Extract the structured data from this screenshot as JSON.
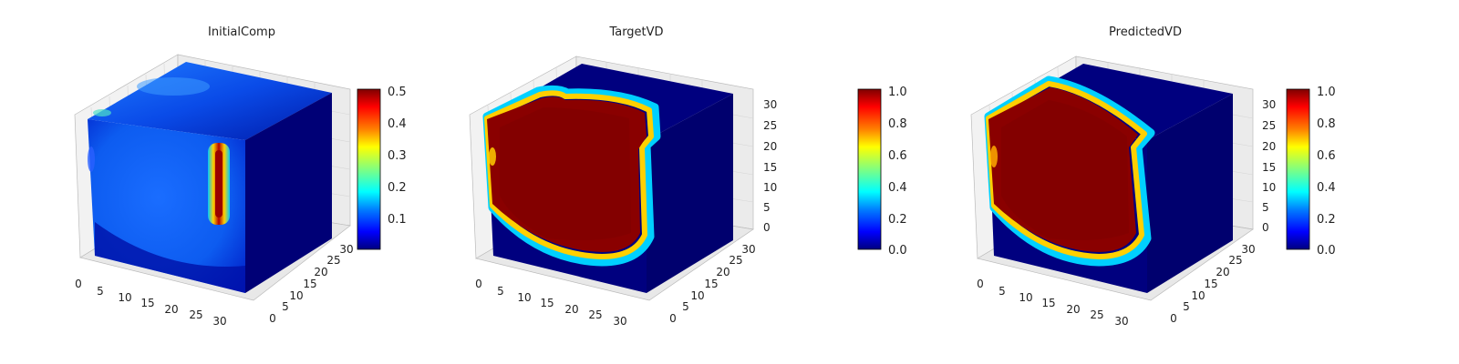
{
  "figure": {
    "panels": [
      {
        "title": "InitialComp"
      },
      {
        "title": "TargetVD"
      },
      {
        "title": "PredictedVD"
      }
    ]
  },
  "chart_data": [
    {
      "type": "heatmap",
      "title": "InitialComp",
      "colormap": "jet",
      "colorbar": {
        "vmin": 0.0,
        "vmax": 0.5,
        "ticks": [
          "0.1",
          "0.2",
          "0.3",
          "0.4",
          "0.5"
        ]
      },
      "x_ticks": [
        "0",
        "5",
        "10",
        "15",
        "20",
        "25",
        "30"
      ],
      "y_ticks": [
        "0",
        "5",
        "10",
        "15",
        "20",
        "25",
        "30"
      ],
      "z_ticks": [],
      "grid": true,
      "description_values": {
        "background": 0.1,
        "hotspot_peak": 0.5
      }
    },
    {
      "type": "heatmap",
      "title": "TargetVD",
      "colormap": "jet",
      "colorbar": {
        "vmin": 0.0,
        "vmax": 1.0,
        "ticks": [
          "0.0",
          "0.2",
          "0.4",
          "0.6",
          "0.8",
          "1.0"
        ]
      },
      "x_ticks": [
        "0",
        "5",
        "10",
        "15",
        "20",
        "25",
        "30"
      ],
      "y_ticks": [
        "0",
        "5",
        "10",
        "15",
        "20",
        "25",
        "30"
      ],
      "z_ticks": [
        "0",
        "5",
        "10",
        "15",
        "20",
        "25",
        "30"
      ],
      "grid": true,
      "description_values": {
        "inside": 1.0,
        "outside": 0.0
      }
    },
    {
      "type": "heatmap",
      "title": "PredictedVD",
      "colormap": "jet",
      "colorbar": {
        "vmin": 0.0,
        "vmax": 1.0,
        "ticks": [
          "0.0",
          "0.2",
          "0.4",
          "0.6",
          "0.8",
          "1.0"
        ]
      },
      "x_ticks": [
        "0",
        "5",
        "10",
        "15",
        "20",
        "25",
        "30"
      ],
      "y_ticks": [
        "0",
        "5",
        "10",
        "15",
        "20",
        "25",
        "30"
      ],
      "z_ticks": [
        "0",
        "5",
        "10",
        "15",
        "20",
        "25",
        "30"
      ],
      "grid": true,
      "description_values": {
        "inside": 1.0,
        "outside": 0.0
      }
    }
  ],
  "colors": {
    "jet_stops": [
      "#00007f",
      "#0000ff",
      "#0080ff",
      "#00ffff",
      "#80ff80",
      "#ffff00",
      "#ff8000",
      "#ff0000",
      "#7f0000"
    ],
    "pane": "#f2f2f2",
    "grid": "#d8d8d8"
  }
}
